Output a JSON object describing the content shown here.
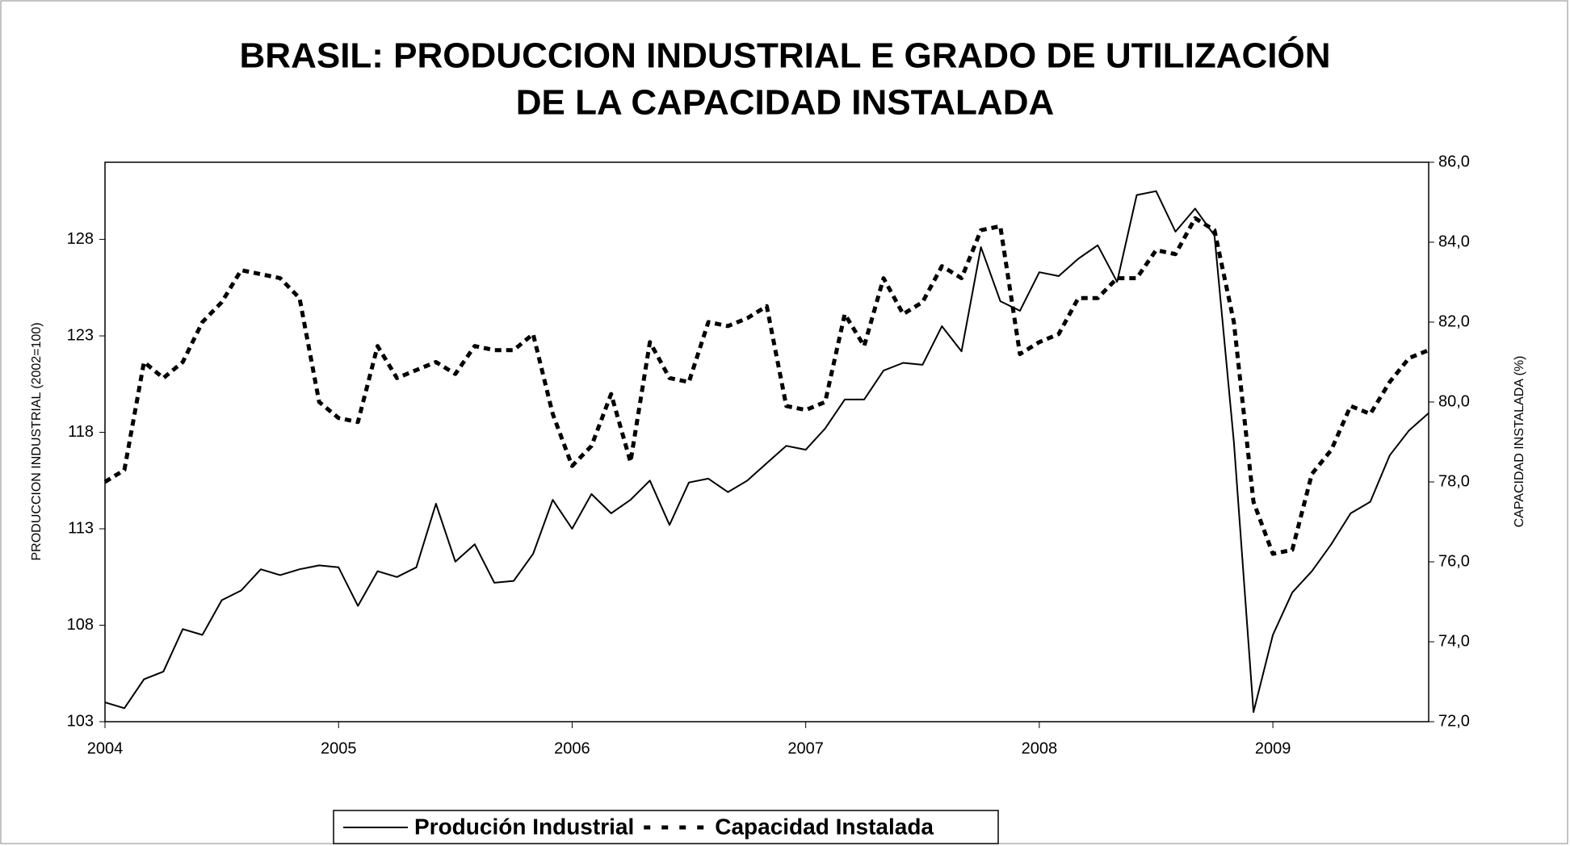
{
  "chart_data": {
    "type": "line",
    "title": [
      "BRASIL: PRODUCCION INDUSTRIAL E GRADO DE  UTILIZACIÓN",
      "DE LA CAPACIDAD INSTALADA"
    ],
    "y_label": "PRODUCCION INDUSTRIAL (2002=100)",
    "y2_label": "CAPACIDAD INSTALADA (%)",
    "x": [
      2004,
      2004.083,
      2004.167,
      2004.25,
      2004.333,
      2004.417,
      2004.5,
      2004.583,
      2004.667,
      2004.75,
      2004.833,
      2004.917,
      2005,
      2005.083,
      2005.167,
      2005.25,
      2005.333,
      2005.417,
      2005.5,
      2005.583,
      2005.667,
      2005.75,
      2005.833,
      2005.917,
      2006,
      2006.083,
      2006.167,
      2006.25,
      2006.333,
      2006.417,
      2006.5,
      2006.583,
      2006.667,
      2006.75,
      2006.833,
      2006.917,
      2007,
      2007.083,
      2007.167,
      2007.25,
      2007.333,
      2007.417,
      2007.5,
      2007.583,
      2007.667,
      2007.75,
      2007.833,
      2007.917,
      2008,
      2008.083,
      2008.167,
      2008.25,
      2008.333,
      2008.417,
      2008.5,
      2008.583,
      2008.667,
      2008.75,
      2008.833,
      2008.917,
      2009,
      2009.083,
      2009.167,
      2009.25,
      2009.333,
      2009.417,
      2009.5,
      2009.583,
      2009.667
    ],
    "series": [
      {
        "name": "Produción Industrial",
        "color": "#000000",
        "style": "solid",
        "values": [
          104.0,
          103.7,
          105.2,
          105.6,
          107.8,
          107.5,
          109.3,
          109.8,
          110.9,
          110.6,
          110.9,
          111.1,
          111.0,
          109.0,
          110.8,
          110.5,
          111.0,
          114.3,
          111.3,
          112.2,
          110.2,
          110.3,
          111.7,
          114.5,
          113.0,
          114.8,
          113.8,
          114.5,
          115.5,
          113.2,
          115.4,
          115.6,
          114.9,
          115.5,
          116.4,
          117.3,
          117.1,
          118.2,
          119.7,
          119.7,
          121.2,
          121.6,
          121.5,
          123.5,
          122.2,
          127.6,
          124.8,
          124.3,
          126.3,
          126.1,
          127.0,
          127.7,
          125.8,
          130.3,
          130.5,
          128.4,
          129.6,
          128.2,
          117.5,
          103.5,
          107.5,
          109.7,
          110.8,
          112.2,
          113.8,
          114.4,
          116.8,
          118.1,
          119.0
        ]
      },
      {
        "name": "Capacidad Instalada",
        "color": "#000000",
        "style": "dashed",
        "axis": "y2",
        "values": [
          78.0,
          78.3,
          81.0,
          80.6,
          81.0,
          82.0,
          82.5,
          83.3,
          83.2,
          83.1,
          82.6,
          80.0,
          79.6,
          79.5,
          81.4,
          80.6,
          80.8,
          81.0,
          80.7,
          81.4,
          81.3,
          81.3,
          81.7,
          79.7,
          78.4,
          78.9,
          80.2,
          78.5,
          81.5,
          80.6,
          80.5,
          82.0,
          81.9,
          82.1,
          82.4,
          79.9,
          79.8,
          80.0,
          82.2,
          81.4,
          83.1,
          82.2,
          82.5,
          83.4,
          83.1,
          84.3,
          84.4,
          81.2,
          81.5,
          81.7,
          82.6,
          82.6,
          83.1,
          83.1,
          83.8,
          83.7,
          84.6,
          84.3,
          82.0,
          77.5,
          76.2,
          76.3,
          78.2,
          78.8,
          79.9,
          79.7,
          80.5,
          81.1,
          81.3
        ]
      }
    ],
    "xlim": [
      2004,
      2009.667
    ],
    "xticks": [
      2004,
      2005,
      2006,
      2007,
      2008,
      2009
    ],
    "ylim": [
      103,
      132
    ],
    "yticks": [
      103,
      108,
      113,
      118,
      123,
      128
    ],
    "y2lim": [
      72,
      86
    ],
    "y2ticks": [
      {
        "value": 72,
        "label": "72,0"
      },
      {
        "value": 74,
        "label": "74,0"
      },
      {
        "value": 76,
        "label": "76,0"
      },
      {
        "value": 78,
        "label": "78,0"
      },
      {
        "value": 80,
        "label": "80,0"
      },
      {
        "value": 82,
        "label": "82,0"
      },
      {
        "value": 84,
        "label": "84,0"
      },
      {
        "value": 86,
        "label": "86,0"
      }
    ],
    "legend": "bottom"
  }
}
